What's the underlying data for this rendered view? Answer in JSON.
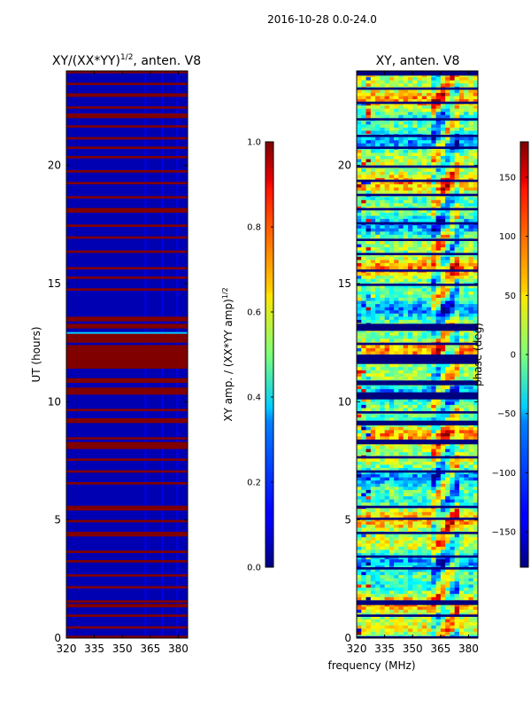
{
  "figure": {
    "suptitle": "2016-10-28 0.0-24.0",
    "shared_xlabel": "frequency (MHz)"
  },
  "chart_data": [
    {
      "type": "heatmap",
      "title": "XY/(XX*YY)",
      "title_sup": "1/2",
      "title_suffix": ", anten. V8",
      "xlabel": "",
      "ylabel": "UT (hours)",
      "xlim": [
        320,
        385
      ],
      "ylim": [
        0,
        24
      ],
      "xticks": [
        320,
        335,
        350,
        365,
        380
      ],
      "yticks": [
        0,
        5,
        10,
        15,
        20
      ],
      "colormap": "jet",
      "colorbar": {
        "label": "XY amp. / (XX*YY amp)",
        "label_sup": "1/2",
        "range": [
          0.0,
          1.0
        ],
        "ticks": [
          "0.0",
          "0.2",
          "0.4",
          "0.6",
          "0.8",
          "1.0"
        ]
      },
      "description_values": {
        "background_low_band_value": 0.05,
        "flagged_rows_value": 1.0,
        "high_band_start_mhz": 360
      }
    },
    {
      "type": "heatmap",
      "title": "XY, anten. V8",
      "xlabel": "",
      "ylabel": "",
      "xlim": [
        320,
        385
      ],
      "ylim": [
        0,
        24
      ],
      "xticks": [
        320,
        335,
        350,
        365,
        380
      ],
      "yticks": [
        0,
        5,
        10,
        15,
        20
      ],
      "colormap": "jet",
      "colorbar": {
        "label": "phase (deg)",
        "range": [
          -180,
          180
        ],
        "ticks": [
          "−150",
          "−100",
          "−50",
          "0",
          "50",
          "100",
          "150"
        ]
      }
    }
  ]
}
